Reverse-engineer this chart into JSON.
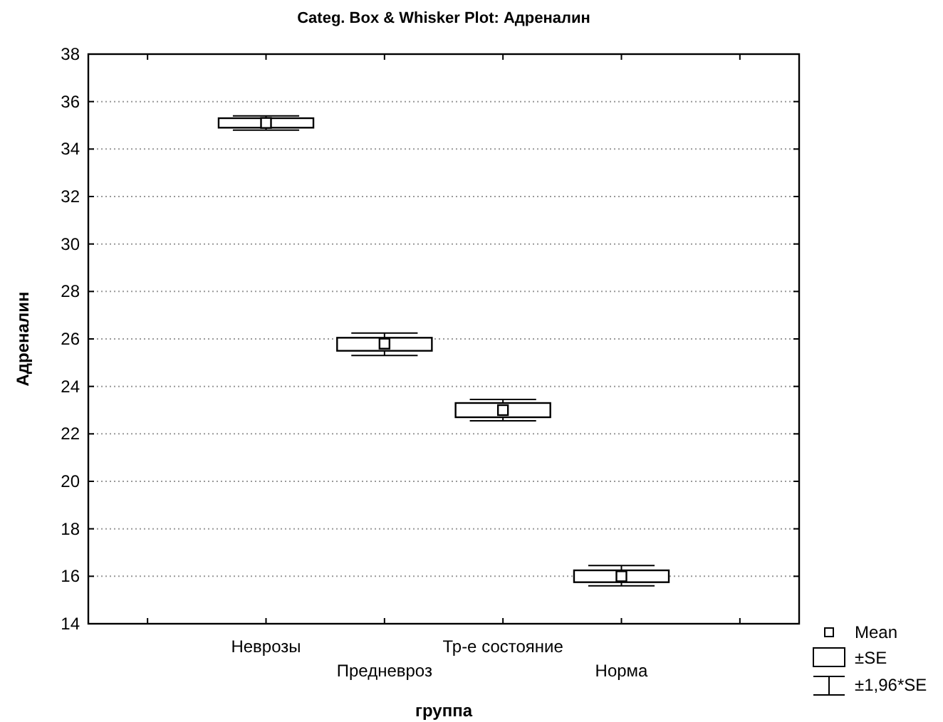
{
  "chart_data": {
    "type": "box",
    "title": "Categ. Box & Whisker Plot: Адреналин",
    "xlabel": "группа",
    "ylabel": "Адреналин",
    "categories": [
      null,
      "Неврозы",
      "Предневроз",
      "Тр-е состояние",
      "Норма",
      null
    ],
    "boxes": [
      null,
      {
        "low": 34.8,
        "q1": 34.9,
        "median": 35.1,
        "q3": 35.3,
        "high": 35.4
      },
      {
        "low": 25.3,
        "q1": 25.5,
        "median": 25.8,
        "q3": 26.05,
        "high": 26.25
      },
      {
        "low": 22.55,
        "q1": 22.7,
        "median": 23,
        "q3": 23.3,
        "high": 23.45
      },
      {
        "low": 15.6,
        "q1": 15.75,
        "median": 16,
        "q3": 16.25,
        "high": 16.45
      },
      null
    ],
    "ylim": [
      14,
      38
    ],
    "yticks": [
      14,
      16,
      18,
      20,
      22,
      24,
      26,
      28,
      30,
      32,
      34,
      36,
      38
    ],
    "grid": "y",
    "annotations": [
      "Mean",
      "±SE",
      "±1,96*SE"
    ]
  }
}
